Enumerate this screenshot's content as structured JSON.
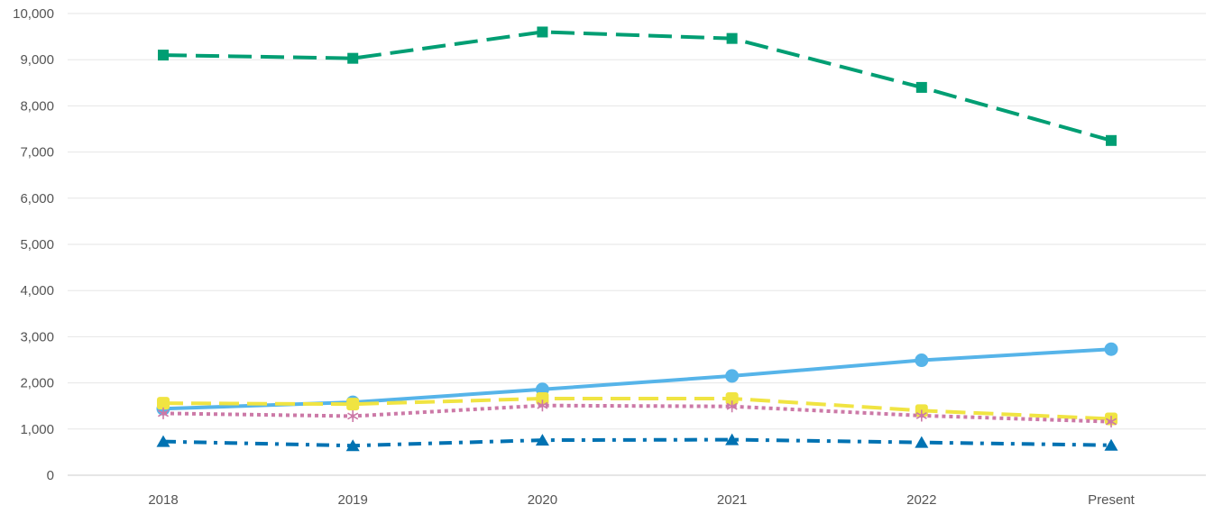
{
  "chart_data": {
    "type": "line",
    "title": "",
    "xlabel": "",
    "ylabel": "",
    "categories": [
      "2018",
      "2019",
      "2020",
      "2021",
      "2022",
      "Present"
    ],
    "y_ticks": [
      "0",
      "1,000",
      "2,000",
      "3,000",
      "4,000",
      "5,000",
      "6,000",
      "7,000",
      "8,000",
      "9,000",
      "10,000"
    ],
    "ylim": [
      0,
      10000
    ],
    "grid": true,
    "legend": "none",
    "series": [
      {
        "color": "#009E73",
        "dash": "long-dash",
        "marker": "square",
        "values": [
          9100,
          9030,
          9600,
          9460,
          8400,
          7250
        ]
      },
      {
        "color": "#56B4E9",
        "dash": "solid",
        "marker": "circle",
        "values": [
          1440,
          1580,
          1860,
          2150,
          2490,
          2730
        ]
      },
      {
        "color": "#F0E442",
        "dash": "dash",
        "marker": "rounded-square",
        "values": [
          1560,
          1540,
          1660,
          1660,
          1400,
          1220
        ]
      },
      {
        "color": "#CC79A7",
        "dash": "dotted",
        "marker": "asterisk",
        "values": [
          1340,
          1280,
          1510,
          1490,
          1290,
          1160
        ]
      },
      {
        "color": "#0072B2",
        "dash": "dash-dot",
        "marker": "triangle",
        "values": [
          730,
          640,
          760,
          770,
          710,
          650
        ]
      }
    ]
  }
}
